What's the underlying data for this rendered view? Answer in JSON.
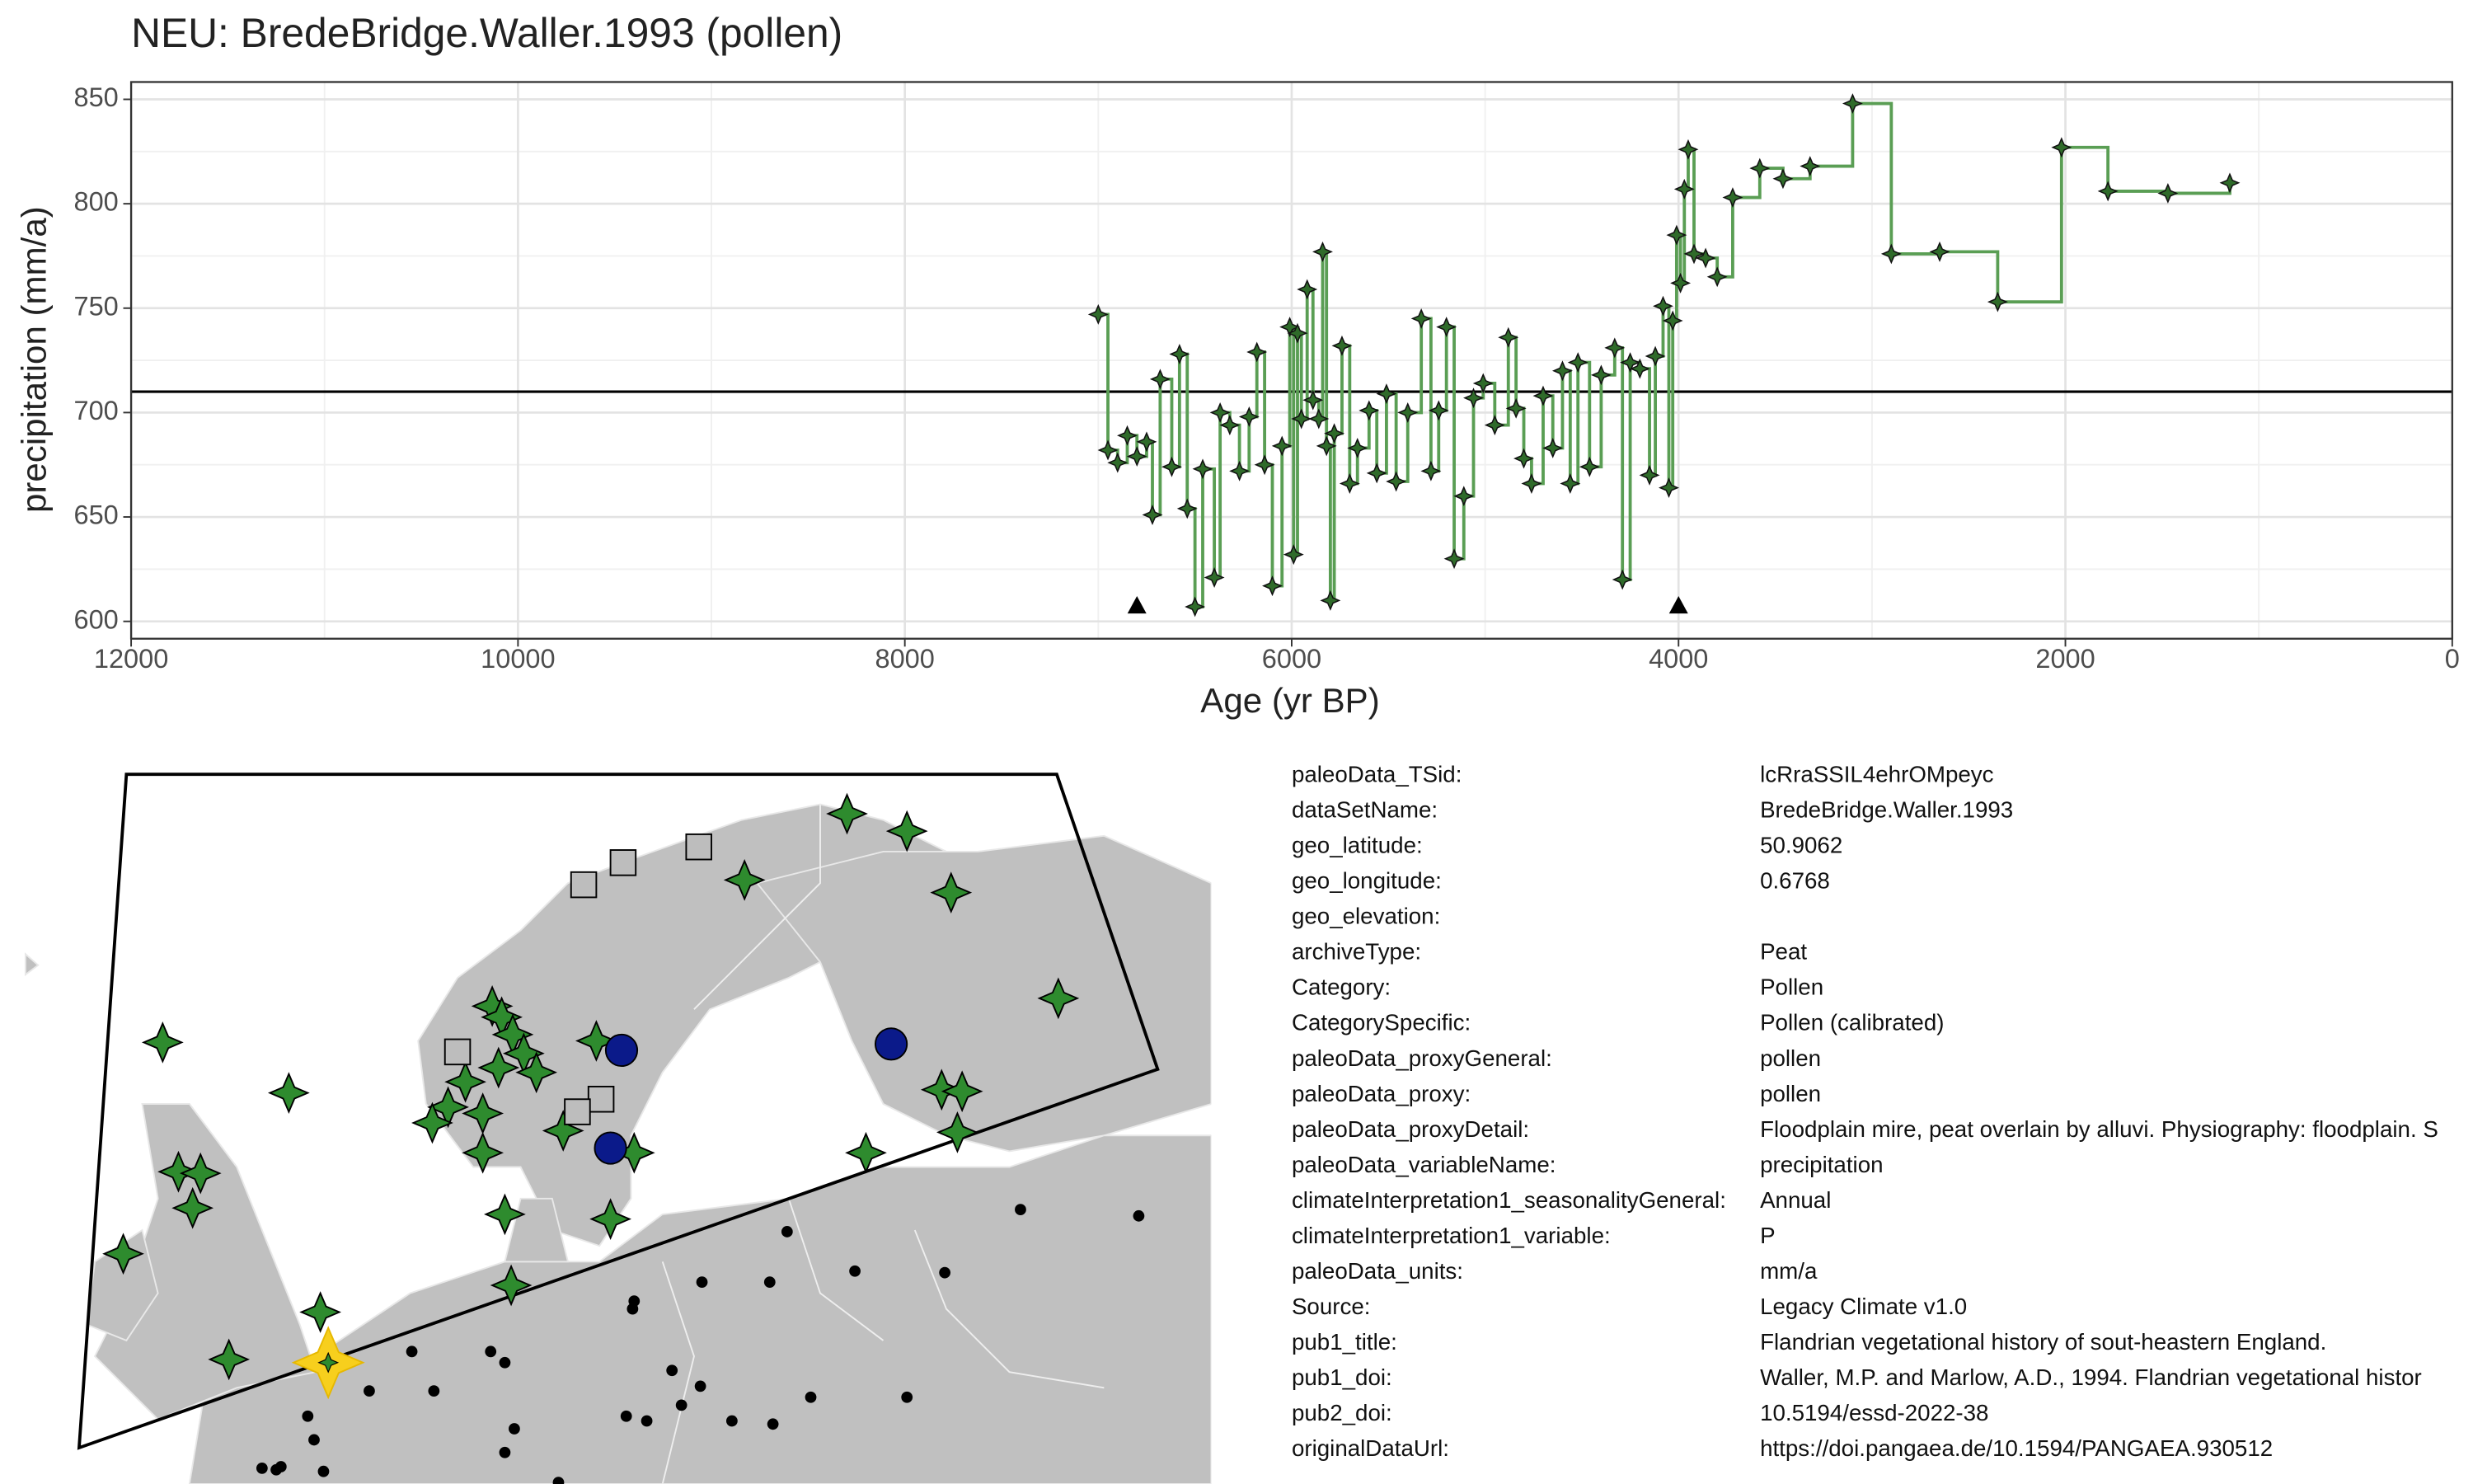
{
  "chart_data": {
    "type": "step",
    "title": "NEU: BredeBridge.Waller.1993 (pollen)",
    "x_label": "Age (yr BP)",
    "y_label": "precipitation (mm/a)",
    "x": [
      7000,
      6950,
      6900,
      6850,
      6800,
      6750,
      6720,
      6680,
      6620,
      6580,
      6540,
      6500,
      6460,
      6400,
      6370,
      6320,
      6270,
      6220,
      6180,
      6140,
      6100,
      6050,
      6010,
      5990,
      5970,
      5950,
      5920,
      5890,
      5860,
      5840,
      5820,
      5800,
      5780,
      5740,
      5700,
      5660,
      5600,
      5560,
      5510,
      5460,
      5400,
      5330,
      5280,
      5240,
      5200,
      5160,
      5110,
      5060,
      5010,
      4950,
      4880,
      4840,
      4800,
      4760,
      4700,
      4650,
      4600,
      4560,
      4520,
      4460,
      4400,
      4330,
      4290,
      4250,
      4200,
      4150,
      4120,
      4080,
      4050,
      4030,
      4010,
      3990,
      3970,
      3950,
      3920,
      3860,
      3800,
      3720,
      3580,
      3460,
      3320,
      3100,
      2900,
      2650,
      2350,
      2020,
      1780,
      1470,
      1150
    ],
    "values": [
      747,
      682,
      676,
      689,
      679,
      686,
      651,
      716,
      674,
      728,
      654,
      607,
      673,
      621,
      700,
      694,
      672,
      698,
      729,
      675,
      617,
      684,
      741,
      632,
      738,
      697,
      759,
      706,
      697,
      777,
      684,
      610,
      690,
      732,
      666,
      683,
      701,
      671,
      709,
      667,
      700,
      745,
      672,
      701,
      741,
      630,
      660,
      707,
      714,
      694,
      736,
      702,
      678,
      666,
      708,
      683,
      720,
      666,
      724,
      674,
      718,
      731,
      620,
      724,
      721,
      670,
      727,
      751,
      664,
      744,
      785,
      762,
      807,
      826,
      776,
      774,
      765,
      803,
      817,
      812,
      818,
      848,
      776,
      777,
      753,
      827,
      806,
      805,
      810
    ],
    "color": "#5a9e54",
    "hline": 710,
    "triangle_x": [
      6800,
      4000
    ],
    "xlim": [
      12000,
      0
    ],
    "ylim": [
      591.7,
      858.3
    ],
    "xticks": [
      12000,
      10000,
      8000,
      6000,
      4000,
      2000,
      0
    ],
    "yticks": [
      600,
      650,
      700,
      750,
      800,
      850
    ],
    "grid": true
  },
  "metadata": {
    "rows": [
      [
        "paleoData_TSid:",
        "lcRraSSIL4ehrOMpeyc"
      ],
      [
        "dataSetName:",
        "BredeBridge.Waller.1993"
      ],
      [
        "geo_latitude:",
        "50.9062"
      ],
      [
        "geo_longitude:",
        "0.6768"
      ],
      [
        "geo_elevation:",
        ""
      ],
      [
        "archiveType:",
        "Peat"
      ],
      [
        "Category:",
        "Pollen"
      ],
      [
        "CategorySpecific:",
        "Pollen (calibrated)"
      ],
      [
        "paleoData_proxyGeneral:",
        "pollen"
      ],
      [
        "paleoData_proxy:",
        "pollen"
      ],
      [
        "paleoData_proxyDetail:",
        "Floodplain mire, peat overlain by alluvi. Physiography: floodplain. S"
      ],
      [
        "paleoData_variableName:",
        "precipitation"
      ],
      [
        "climateInterpretation1_seasonalityGeneral:",
        "Annual"
      ],
      [
        "climateInterpretation1_variable:",
        "P"
      ],
      [
        "paleoData_units:",
        "mm/a"
      ],
      [
        "Source:",
        "Legacy Climate v1.0"
      ],
      [
        "pub1_title:",
        "Flandrian vegetational history of sout-heastern England."
      ],
      [
        "pub1_doi:",
        "Waller, M.P. and Marlow, A.D., 1994. Flandrian vegetational histor"
      ],
      [
        "pub2_doi:",
        "10.5194/essd-2022-38"
      ],
      [
        "originalDataUrl:",
        "https://doi.pangaea.de/10.1594/PANGAEA.930512"
      ]
    ]
  }
}
